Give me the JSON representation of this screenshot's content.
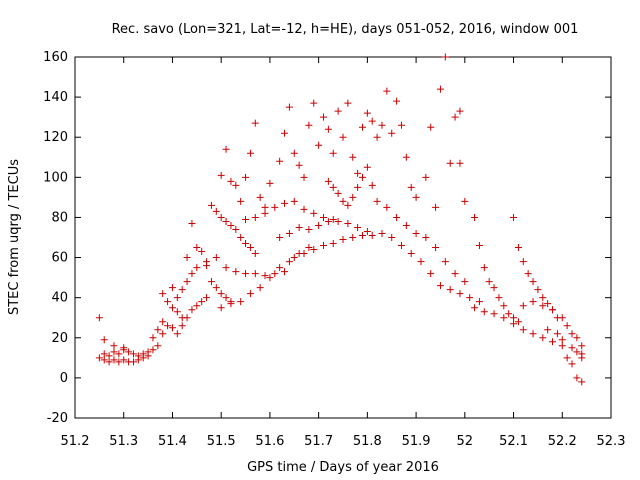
{
  "chart_data": {
    "type": "scatter",
    "title": "Rec. savo (Lon=321, Lat=-12, h=HE), days 051-052, 2016, window 001",
    "xlabel": "GPS time / Days of year 2016",
    "ylabel": "STEC from uqrg / TECUs",
    "xlim": [
      51.2,
      52.3
    ],
    "ylim": [
      -20,
      160
    ],
    "xticks": [
      "51.2",
      "51.3",
      "51.4",
      "51.5",
      "51.6",
      "51.7",
      "51.8",
      "51.9",
      "52",
      "52.1",
      "52.2",
      "52.3"
    ],
    "yticks": [
      "-20",
      "0",
      "20",
      "40",
      "60",
      "80",
      "100",
      "120",
      "140",
      "160"
    ],
    "grid": false,
    "legend": "none",
    "marker": "plus",
    "color": "#cc0000",
    "points": [
      [
        51.25,
        30
      ],
      [
        51.25,
        10
      ],
      [
        51.26,
        9
      ],
      [
        51.27,
        8
      ],
      [
        51.28,
        9
      ],
      [
        51.29,
        8
      ],
      [
        51.3,
        9
      ],
      [
        51.31,
        8
      ],
      [
        51.32,
        8
      ],
      [
        51.33,
        9
      ],
      [
        51.34,
        10
      ],
      [
        51.35,
        11
      ],
      [
        51.26,
        12
      ],
      [
        51.27,
        11
      ],
      [
        51.28,
        13
      ],
      [
        51.29,
        12
      ],
      [
        51.3,
        14
      ],
      [
        51.31,
        13
      ],
      [
        51.32,
        12
      ],
      [
        51.33,
        11
      ],
      [
        51.34,
        12
      ],
      [
        51.35,
        13
      ],
      [
        51.36,
        14
      ],
      [
        51.37,
        16
      ],
      [
        51.26,
        19
      ],
      [
        51.28,
        16
      ],
      [
        51.3,
        15
      ],
      [
        51.36,
        20
      ],
      [
        51.37,
        24
      ],
      [
        51.38,
        28
      ],
      [
        51.38,
        42
      ],
      [
        51.39,
        38
      ],
      [
        51.4,
        35
      ],
      [
        51.41,
        33
      ],
      [
        51.42,
        30
      ],
      [
        51.4,
        45
      ],
      [
        51.41,
        40
      ],
      [
        51.42,
        44
      ],
      [
        51.43,
        48
      ],
      [
        51.44,
        52
      ],
      [
        51.38,
        22
      ],
      [
        51.39,
        26
      ],
      [
        51.4,
        25
      ],
      [
        51.41,
        22
      ],
      [
        51.42,
        26
      ],
      [
        51.43,
        30
      ],
      [
        51.44,
        34
      ],
      [
        51.45,
        36
      ],
      [
        51.46,
        38
      ],
      [
        51.47,
        40
      ],
      [
        51.43,
        60
      ],
      [
        51.44,
        77
      ],
      [
        51.45,
        65
      ],
      [
        51.46,
        63
      ],
      [
        51.47,
        56
      ],
      [
        51.48,
        48
      ],
      [
        51.49,
        45
      ],
      [
        51.5,
        42
      ],
      [
        51.51,
        40
      ],
      [
        51.52,
        38
      ],
      [
        51.48,
        86
      ],
      [
        51.49,
        83
      ],
      [
        51.5,
        80
      ],
      [
        51.51,
        78
      ],
      [
        51.52,
        76
      ],
      [
        51.53,
        74
      ],
      [
        51.54,
        70
      ],
      [
        51.55,
        67
      ],
      [
        51.56,
        65
      ],
      [
        51.57,
        62
      ],
      [
        51.5,
        101
      ],
      [
        51.51,
        114
      ],
      [
        51.52,
        98
      ],
      [
        51.53,
        96
      ],
      [
        51.54,
        88
      ],
      [
        51.55,
        100
      ],
      [
        51.56,
        112
      ],
      [
        51.57,
        127
      ],
      [
        51.58,
        90
      ],
      [
        51.59,
        85
      ],
      [
        51.45,
        55
      ],
      [
        51.47,
        58
      ],
      [
        51.49,
        60
      ],
      [
        51.51,
        55
      ],
      [
        51.53,
        53
      ],
      [
        51.55,
        52
      ],
      [
        51.57,
        52
      ],
      [
        51.59,
        51
      ],
      [
        51.61,
        52
      ],
      [
        51.63,
        53
      ],
      [
        51.5,
        35
      ],
      [
        51.52,
        37
      ],
      [
        51.54,
        38
      ],
      [
        51.56,
        42
      ],
      [
        51.58,
        45
      ],
      [
        51.6,
        50
      ],
      [
        51.62,
        55
      ],
      [
        51.64,
        58
      ],
      [
        51.66,
        62
      ],
      [
        51.68,
        65
      ],
      [
        51.55,
        79
      ],
      [
        51.57,
        80
      ],
      [
        51.59,
        82
      ],
      [
        51.61,
        85
      ],
      [
        51.63,
        87
      ],
      [
        51.65,
        88
      ],
      [
        51.67,
        84
      ],
      [
        51.69,
        82
      ],
      [
        51.71,
        80
      ],
      [
        51.73,
        79
      ],
      [
        51.6,
        97
      ],
      [
        51.62,
        108
      ],
      [
        51.63,
        122
      ],
      [
        51.64,
        135
      ],
      [
        51.65,
        112
      ],
      [
        51.66,
        106
      ],
      [
        51.67,
        100
      ],
      [
        51.68,
        126
      ],
      [
        51.69,
        137
      ],
      [
        51.7,
        116
      ],
      [
        51.71,
        130
      ],
      [
        51.72,
        124
      ],
      [
        51.73,
        112
      ],
      [
        51.74,
        133
      ],
      [
        51.75,
        120
      ],
      [
        51.76,
        137
      ],
      [
        51.77,
        110
      ],
      [
        51.78,
        102
      ],
      [
        51.79,
        125
      ],
      [
        51.8,
        132
      ],
      [
        51.72,
        98
      ],
      [
        51.73,
        95
      ],
      [
        51.74,
        92
      ],
      [
        51.75,
        88
      ],
      [
        51.76,
        86
      ],
      [
        51.77,
        90
      ],
      [
        51.78,
        95
      ],
      [
        51.79,
        100
      ],
      [
        51.8,
        105
      ],
      [
        51.81,
        96
      ],
      [
        51.62,
        70
      ],
      [
        51.64,
        72
      ],
      [
        51.66,
        75
      ],
      [
        51.68,
        74
      ],
      [
        51.7,
        76
      ],
      [
        51.72,
        78
      ],
      [
        51.74,
        78
      ],
      [
        51.76,
        77
      ],
      [
        51.78,
        75
      ],
      [
        51.8,
        73
      ],
      [
        51.65,
        60
      ],
      [
        51.67,
        62
      ],
      [
        51.69,
        64
      ],
      [
        51.71,
        66
      ],
      [
        51.73,
        67
      ],
      [
        51.75,
        69
      ],
      [
        51.77,
        70
      ],
      [
        51.79,
        71
      ],
      [
        51.81,
        71
      ],
      [
        51.83,
        72
      ],
      [
        51.81,
        128
      ],
      [
        51.82,
        120
      ],
      [
        51.83,
        126
      ],
      [
        51.84,
        143
      ],
      [
        51.85,
        122
      ],
      [
        51.86,
        138
      ],
      [
        51.87,
        126
      ],
      [
        51.88,
        110
      ],
      [
        51.89,
        95
      ],
      [
        51.9,
        90
      ],
      [
        51.82,
        88
      ],
      [
        51.84,
        85
      ],
      [
        51.86,
        80
      ],
      [
        51.88,
        76
      ],
      [
        51.9,
        72
      ],
      [
        51.92,
        70
      ],
      [
        51.94,
        65
      ],
      [
        51.96,
        58
      ],
      [
        51.98,
        52
      ],
      [
        52.0,
        48
      ],
      [
        51.85,
        70
      ],
      [
        51.87,
        66
      ],
      [
        51.89,
        62
      ],
      [
        51.91,
        58
      ],
      [
        51.93,
        52
      ],
      [
        51.95,
        46
      ],
      [
        51.97,
        44
      ],
      [
        51.99,
        42
      ],
      [
        52.01,
        40
      ],
      [
        52.03,
        38
      ],
      [
        51.93,
        125
      ],
      [
        51.95,
        144
      ],
      [
        51.96,
        160
      ],
      [
        51.97,
        107
      ],
      [
        51.98,
        130
      ],
      [
        51.99,
        133
      ],
      [
        52.0,
        88
      ],
      [
        51.99,
        107
      ],
      [
        51.94,
        85
      ],
      [
        51.92,
        100
      ],
      [
        52.02,
        80
      ],
      [
        52.03,
        66
      ],
      [
        52.04,
        55
      ],
      [
        52.05,
        48
      ],
      [
        52.06,
        45
      ],
      [
        52.07,
        40
      ],
      [
        52.08,
        36
      ],
      [
        52.09,
        32
      ],
      [
        52.1,
        30
      ],
      [
        52.11,
        28
      ],
      [
        52.02,
        35
      ],
      [
        52.04,
        33
      ],
      [
        52.06,
        32
      ],
      [
        52.08,
        30
      ],
      [
        52.1,
        27
      ],
      [
        52.12,
        24
      ],
      [
        52.14,
        22
      ],
      [
        52.16,
        20
      ],
      [
        52.18,
        18
      ],
      [
        52.2,
        16
      ],
      [
        52.1,
        80
      ],
      [
        52.11,
        65
      ],
      [
        52.12,
        58
      ],
      [
        52.13,
        52
      ],
      [
        52.14,
        48
      ],
      [
        52.15,
        44
      ],
      [
        52.16,
        40
      ],
      [
        52.17,
        37
      ],
      [
        52.18,
        34
      ],
      [
        52.19,
        30
      ],
      [
        52.12,
        36
      ],
      [
        52.14,
        38
      ],
      [
        52.16,
        36
      ],
      [
        52.18,
        34
      ],
      [
        52.2,
        30
      ],
      [
        52.21,
        26
      ],
      [
        52.22,
        22
      ],
      [
        52.23,
        20
      ],
      [
        52.24,
        16
      ],
      [
        52.24,
        10
      ],
      [
        52.21,
        10
      ],
      [
        52.22,
        7
      ],
      [
        52.23,
        0
      ],
      [
        52.24,
        -2
      ],
      [
        52.2,
        19
      ],
      [
        52.22,
        15
      ],
      [
        52.23,
        13
      ],
      [
        52.24,
        12
      ],
      [
        52.19,
        22
      ],
      [
        52.17,
        24
      ]
    ]
  }
}
